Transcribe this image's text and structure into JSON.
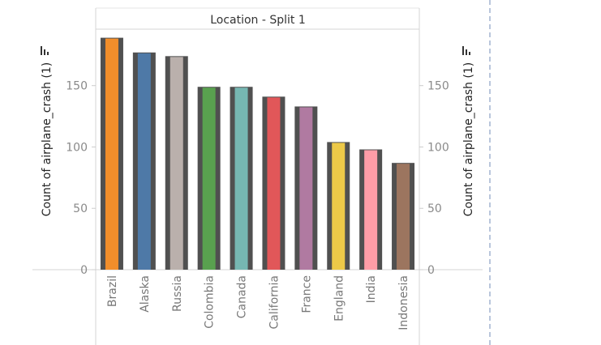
{
  "chart_data": {
    "type": "bar",
    "title": "",
    "column_header": "Location - Split 1",
    "ylabel": "Count of airplane_crash (1)",
    "xlabel": "",
    "ylim": [
      0,
      196
    ],
    "yticks": [
      0,
      50,
      100,
      150
    ],
    "categories": [
      "Brazil",
      "Alaska",
      "Russia",
      "Colombia",
      "Canada",
      "California",
      "France",
      "England",
      "India",
      "Indonesia"
    ],
    "values": [
      189,
      177,
      174,
      149,
      149,
      141,
      133,
      104,
      98,
      87
    ],
    "colors": {
      "bar_outline": "#505050",
      "Brazil": "#F28E2B",
      "Alaska": "#4E79A7",
      "Russia": "#BAB0AC",
      "Colombia": "#59A14F",
      "Canada": "#76B7B2",
      "California": "#E15759",
      "France": "#B07AA1",
      "England": "#EDC948",
      "India": "#FF9DA7",
      "Indonesia": "#9C755F"
    },
    "grid": false
  }
}
